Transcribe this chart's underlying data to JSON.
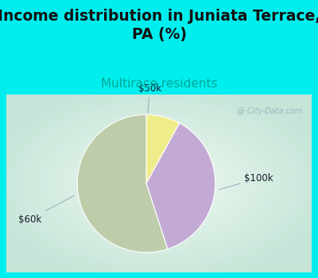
{
  "title": "Income distribution in Juniata Terrace,\nPA (%)",
  "subtitle": "Multirace residents",
  "title_fontsize": 13.5,
  "subtitle_fontsize": 11,
  "background_color": "#00EEEE",
  "chart_bg_color_center": "#f0f8f0",
  "chart_bg_color_edge": "#b8ddd0",
  "watermark": "City-Data.com",
  "slices": [
    {
      "label": "$50k",
      "value": 8,
      "color": "#EEED8A"
    },
    {
      "label": "$100k",
      "value": 37,
      "color": "#C3AAD5"
    },
    {
      "label": "$60k",
      "value": 55,
      "color": "#BECCAA"
    }
  ],
  "label_color": "#1a1a2e",
  "label_fontsize": 8.5,
  "start_angle": 90
}
